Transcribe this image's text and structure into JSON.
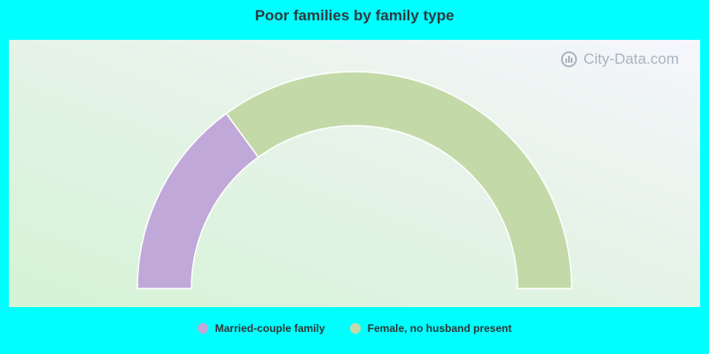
{
  "chart_data": {
    "type": "pie",
    "variant": "half-donut",
    "title": "Poor families by family type",
    "categories": [
      "Married-couple family",
      "Female, no husband present"
    ],
    "values": [
      29.9,
      70.1
    ],
    "colors": [
      "#c0a8d8",
      "#c4d9a8"
    ],
    "legend_position": "bottom"
  },
  "watermark": {
    "text": "City-Data.com"
  }
}
